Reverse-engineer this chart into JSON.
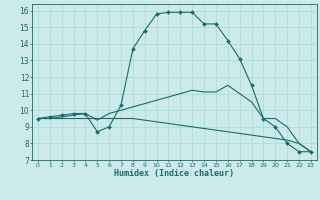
{
  "title": "",
  "xlabel": "Humidex (Indice chaleur)",
  "bg_color": "#cceaea",
  "grid_color": "#aadddd",
  "line_color": "#1a6b6b",
  "xlim": [
    -0.5,
    23.5
  ],
  "ylim": [
    7,
    16.4
  ],
  "xticks": [
    0,
    1,
    2,
    3,
    4,
    5,
    6,
    7,
    8,
    9,
    10,
    11,
    12,
    13,
    14,
    15,
    16,
    17,
    18,
    19,
    20,
    21,
    22,
    23
  ],
  "yticks": [
    7,
    8,
    9,
    10,
    11,
    12,
    13,
    14,
    15,
    16
  ],
  "series": [
    {
      "x": [
        0,
        1,
        2,
        3,
        4,
        5,
        6,
        7,
        8,
        9,
        10,
        11,
        12,
        13,
        14,
        15,
        16,
        17,
        18,
        19,
        20,
        21,
        22,
        23
      ],
      "y": [
        9.5,
        9.6,
        9.7,
        9.8,
        9.8,
        8.7,
        9.0,
        10.3,
        13.7,
        14.8,
        15.8,
        15.9,
        15.9,
        15.9,
        15.2,
        15.2,
        14.2,
        13.1,
        11.5,
        9.5,
        9.0,
        8.0,
        7.5,
        7.5
      ],
      "marker": true
    },
    {
      "x": [
        0,
        1,
        2,
        3,
        4,
        5,
        6,
        7,
        8,
        9,
        10,
        11,
        12,
        13,
        14,
        15,
        16,
        17,
        18,
        19,
        20,
        21,
        22,
        23
      ],
      "y": [
        9.5,
        9.5,
        9.5,
        9.5,
        9.5,
        9.5,
        9.5,
        9.5,
        9.5,
        9.4,
        9.3,
        9.2,
        9.1,
        9.0,
        8.9,
        8.8,
        8.7,
        8.6,
        8.5,
        8.4,
        8.3,
        8.2,
        8.0,
        7.5
      ],
      "marker": false
    },
    {
      "x": [
        0,
        1,
        2,
        3,
        4,
        5,
        6,
        7,
        8,
        9,
        10,
        11,
        12,
        13,
        14,
        15,
        16,
        17,
        18,
        19,
        20,
        21,
        22,
        23
      ],
      "y": [
        9.5,
        9.5,
        9.6,
        9.7,
        9.8,
        9.4,
        9.8,
        10.0,
        10.2,
        10.4,
        10.6,
        10.8,
        11.0,
        11.2,
        11.1,
        11.1,
        11.5,
        11.0,
        10.5,
        9.5,
        9.5,
        9.0,
        8.0,
        7.5
      ],
      "marker": false
    }
  ]
}
